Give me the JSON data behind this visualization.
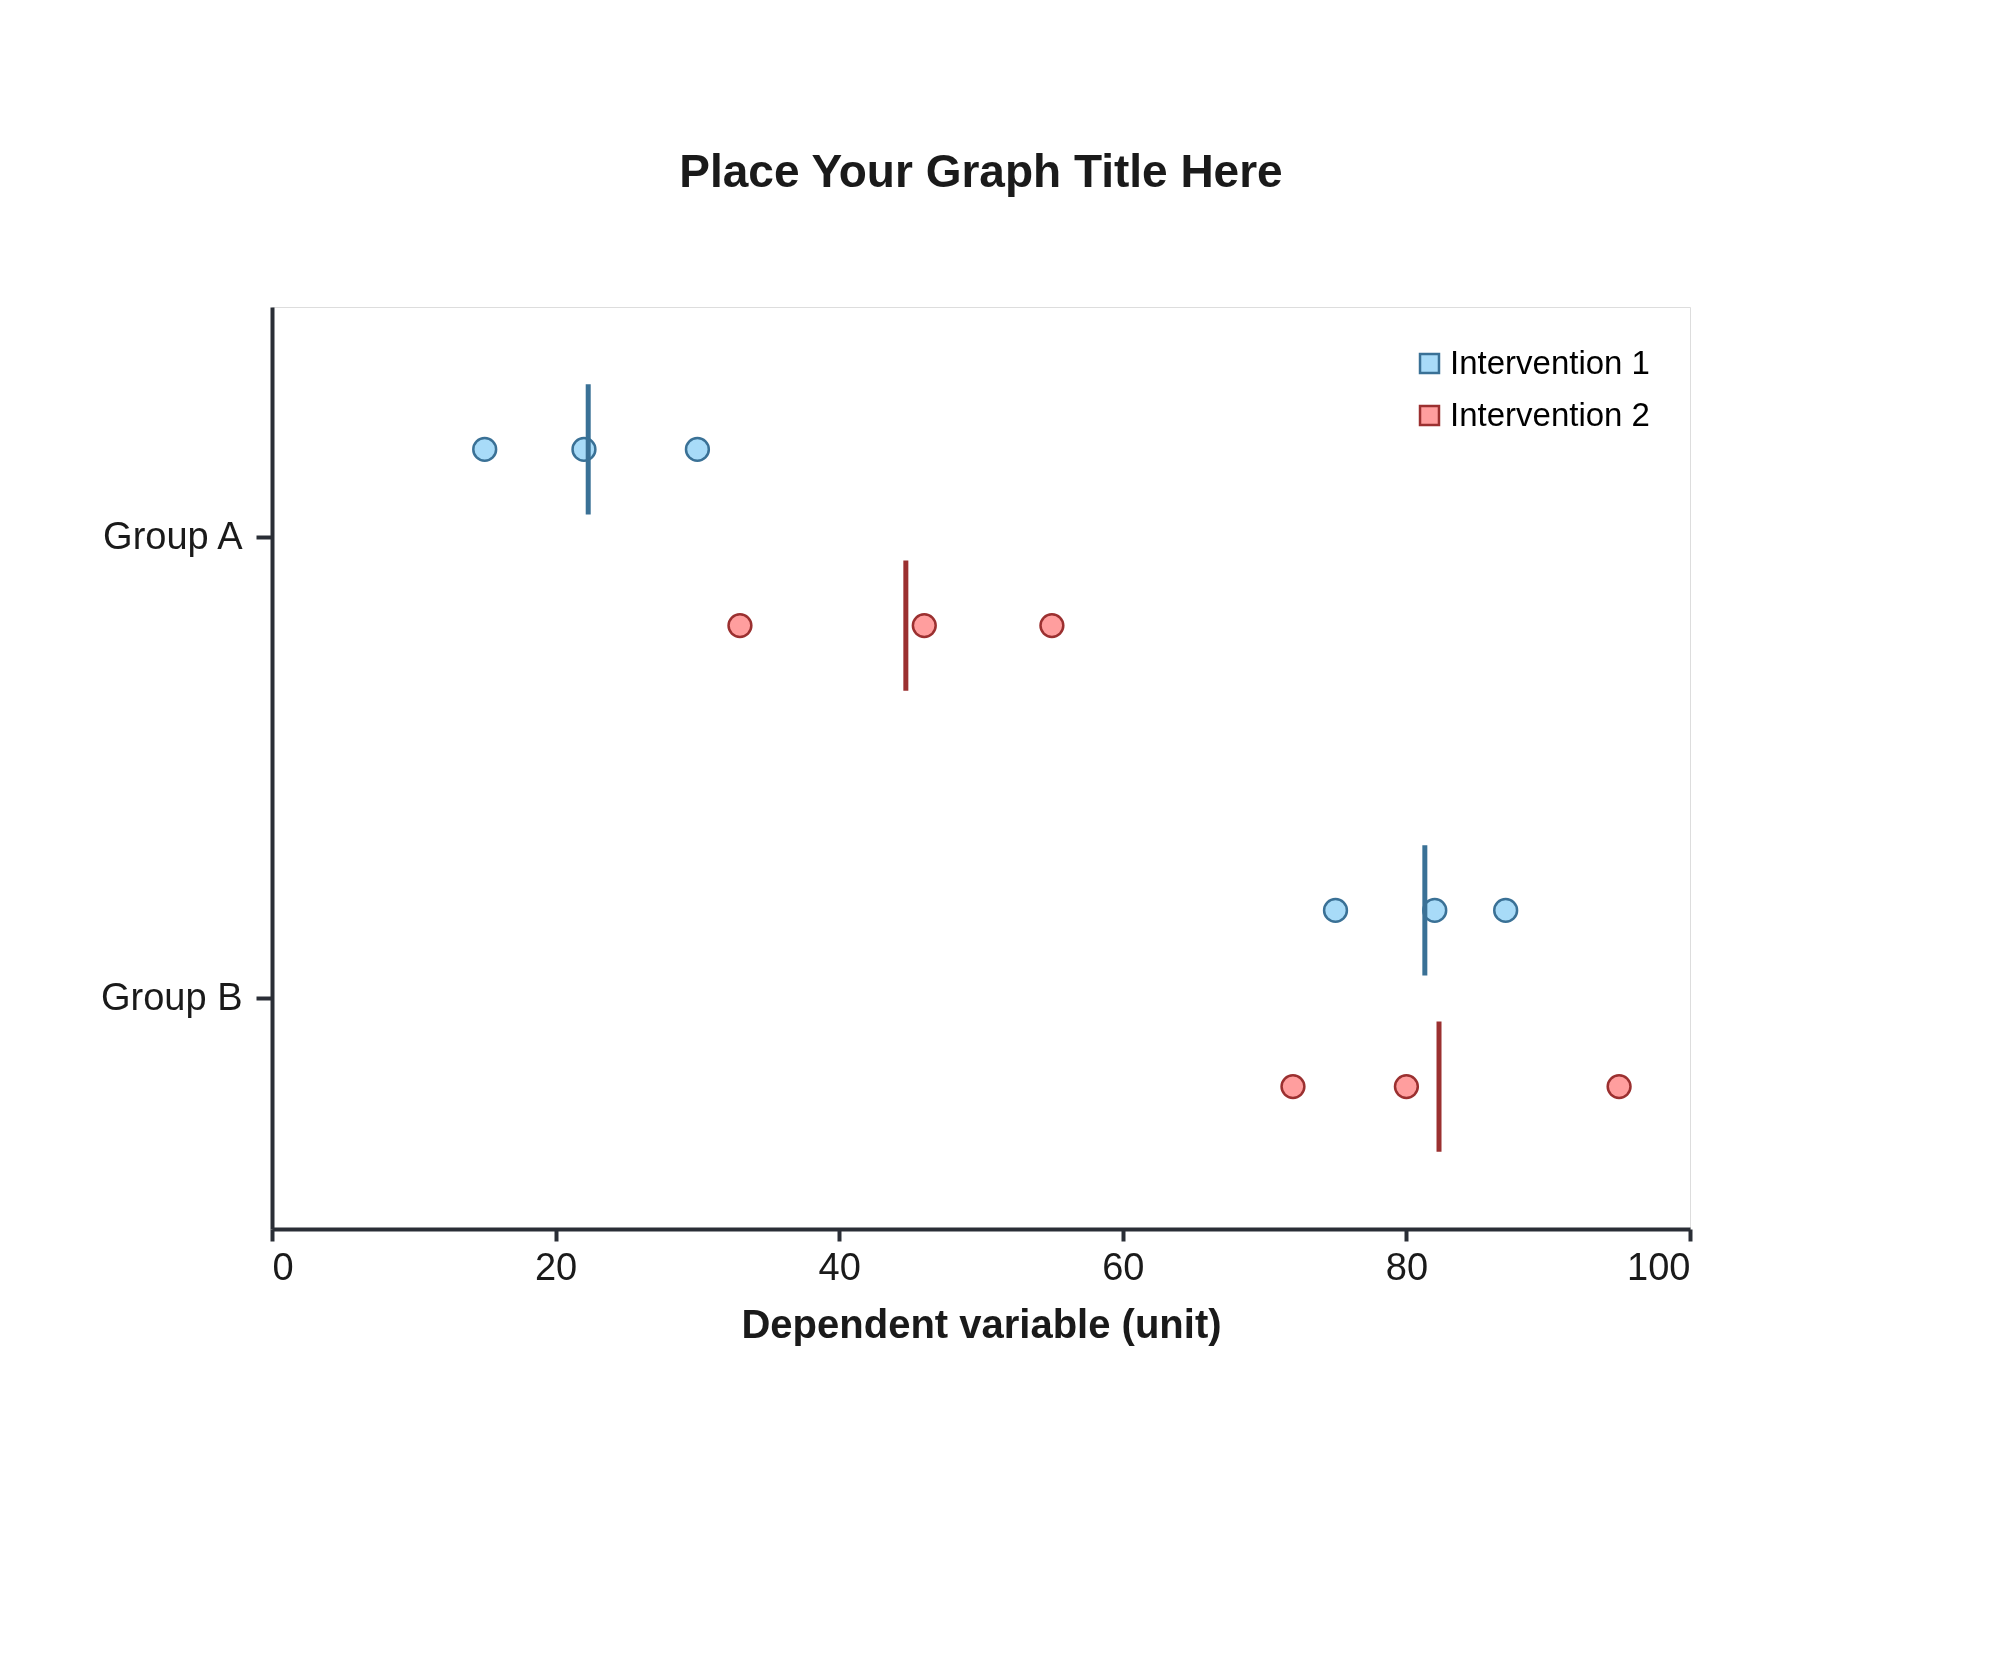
{
  "chart_data": {
    "type": "scatter",
    "orientation": "horizontal",
    "title": "Place Your Graph Title Here",
    "xlabel": "Dependent variable (unit)",
    "categories": [
      "Group A",
      "Group B"
    ],
    "series": [
      {
        "name": "Intervention 1",
        "type": "scatter",
        "marker": "circle",
        "color": "#a8dbf8",
        "x": [
          "Group A",
          "Group A",
          "Group A",
          "Group B",
          "Group B",
          "Group B"
        ],
        "values": [
          15,
          22,
          30,
          75,
          82,
          87
        ]
      },
      {
        "name": "Intervention 2",
        "type": "scatter",
        "marker": "circle",
        "color": "#ff9e9e",
        "x": [
          "Group A",
          "Group A",
          "Group A",
          "Group B",
          "Group B",
          "Group B"
        ],
        "values": [
          33,
          46,
          55,
          72,
          80,
          95
        ]
      }
    ],
    "ref_lines": [
      {
        "axis": "x",
        "value": 22.3,
        "color": "#3a7196"
      },
      {
        "axis": "x",
        "value": 44.7,
        "color": "#9b3030"
      },
      {
        "axis": "x",
        "value": 81.3,
        "color": "#3a7196"
      },
      {
        "axis": "x",
        "value": 82.3,
        "color": "#9b3030"
      }
    ],
    "xlim": [
      0,
      100
    ],
    "xticks": [
      0,
      20,
      40,
      60,
      80,
      100
    ],
    "grid": false,
    "legend": "top right"
  }
}
